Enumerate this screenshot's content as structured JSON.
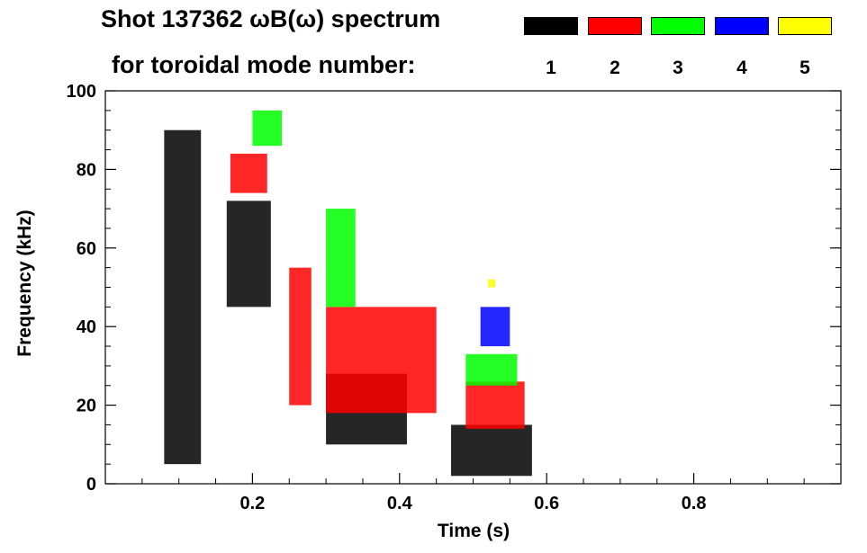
{
  "chart_data": {
    "type": "heatmap",
    "title_line1": "Shot 137362 ωB(ω) spectrum",
    "title_line2": "for toroidal mode number:",
    "xlabel": "Time (s)",
    "ylabel": "Frequency (kHz)",
    "xlim": [
      0.0,
      1.0
    ],
    "ylim": [
      0,
      100
    ],
    "xticks": [
      {
        "value": 0.2,
        "label": "0.2"
      },
      {
        "value": 0.4,
        "label": "0.4"
      },
      {
        "value": 0.6,
        "label": "0.6"
      },
      {
        "value": 0.8,
        "label": "0.8"
      }
    ],
    "yticks": [
      {
        "value": 0,
        "label": "0"
      },
      {
        "value": 20,
        "label": "20"
      },
      {
        "value": 40,
        "label": "40"
      },
      {
        "value": 60,
        "label": "60"
      },
      {
        "value": 80,
        "label": "80"
      },
      {
        "value": 100,
        "label": "100"
      }
    ],
    "legend": [
      {
        "mode": "1",
        "color": "#000000"
      },
      {
        "mode": "2",
        "color": "#ff0000"
      },
      {
        "mode": "3",
        "color": "#00ff00"
      },
      {
        "mode": "4",
        "color": "#0000ff"
      },
      {
        "mode": "5",
        "color": "#ffff00"
      }
    ],
    "series": [
      {
        "name": "n=1",
        "color": "#000000",
        "regions": [
          {
            "t0": 0.08,
            "t1": 0.13,
            "f0": 5,
            "f1": 90
          },
          {
            "t0": 0.165,
            "t1": 0.225,
            "f0": 45,
            "f1": 72
          },
          {
            "t0": 0.3,
            "t1": 0.41,
            "f0": 10,
            "f1": 28
          },
          {
            "t0": 0.47,
            "t1": 0.58,
            "f0": 2,
            "f1": 15
          }
        ]
      },
      {
        "name": "n=2",
        "color": "#ff0000",
        "regions": [
          {
            "t0": 0.17,
            "t1": 0.22,
            "f0": 74,
            "f1": 84
          },
          {
            "t0": 0.25,
            "t1": 0.28,
            "f0": 20,
            "f1": 55
          },
          {
            "t0": 0.3,
            "t1": 0.45,
            "f0": 18,
            "f1": 45
          },
          {
            "t0": 0.49,
            "t1": 0.57,
            "f0": 14,
            "f1": 26
          }
        ]
      },
      {
        "name": "n=3",
        "color": "#00ff00",
        "regions": [
          {
            "t0": 0.2,
            "t1": 0.24,
            "f0": 86,
            "f1": 95
          },
          {
            "t0": 0.3,
            "t1": 0.34,
            "f0": 45,
            "f1": 70
          },
          {
            "t0": 0.49,
            "t1": 0.56,
            "f0": 25,
            "f1": 33
          }
        ]
      },
      {
        "name": "n=4",
        "color": "#0000ff",
        "regions": [
          {
            "t0": 0.51,
            "t1": 0.55,
            "f0": 35,
            "f1": 45
          }
        ]
      },
      {
        "name": "n=5",
        "color": "#ffff00",
        "regions": [
          {
            "t0": 0.52,
            "t1": 0.53,
            "f0": 50,
            "f1": 52
          }
        ]
      }
    ]
  }
}
